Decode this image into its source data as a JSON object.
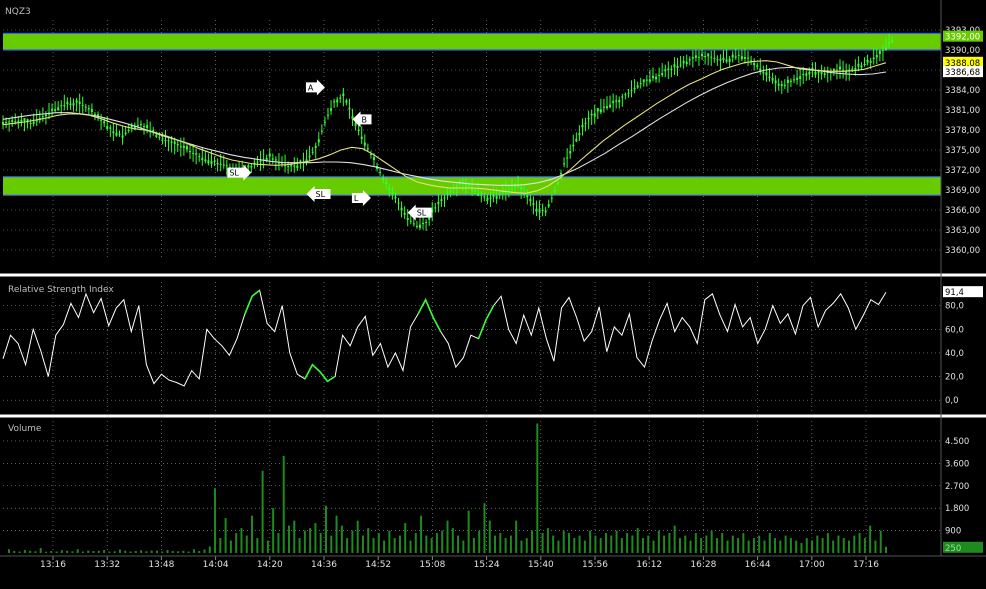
{
  "symbol": "NQZ3",
  "colors": {
    "background": "#000000",
    "up_candle": "#33ff33",
    "band_fill": "#66cc00",
    "band_edge": "#3355ff",
    "ma_fast": "#e6e07a",
    "ma_slow": "#e0e0e0",
    "rsi_line": "#ffffff",
    "volume_bar": "#1f8a1f",
    "separator": "#ffffff",
    "grid": "#9a9a9a",
    "price_tag_last": "#66cc00",
    "price_tag_yellow": "#ffff00",
    "price_tag_white": "#ffffff"
  },
  "x_labels": [
    "13:16",
    "13:32",
    "13:48",
    "14:04",
    "14:20",
    "14:36",
    "14:52",
    "15:08",
    "15:24",
    "15:40",
    "15:56",
    "16:12",
    "16:28",
    "16:44",
    "17:00",
    "17:16"
  ],
  "chart_data": [
    {
      "type": "line",
      "panel": "price",
      "title": "NQZ3",
      "y_ticks": [
        3360,
        3363,
        3366,
        3369,
        3372,
        3375,
        3378,
        3381,
        3384,
        3387,
        3390,
        3393
      ],
      "y_tick_labels": [
        "3360,00",
        "3363,00",
        "3366,00",
        "3369,00",
        "3372,00",
        "3375,00",
        "3378,00",
        "3381,00",
        "3384,00",
        "3387,00",
        "3390,00",
        "3393,00"
      ],
      "ylim": [
        3358.5,
        3394.5
      ],
      "price_tags": [
        {
          "value": 3392.0,
          "label": "3392,00",
          "style": "last"
        },
        {
          "value": 3388.08,
          "label": "3388,08",
          "style": "yellow"
        },
        {
          "value": 3386.68,
          "label": "3386,68",
          "style": "white"
        }
      ],
      "zones": [
        {
          "from": 3390.0,
          "to": 3392.5
        },
        {
          "from": 3368.2,
          "to": 3371.0
        }
      ],
      "close_series": [
        3379.2,
        3379.5,
        3379.0,
        3379.8,
        3380.6,
        3381.4,
        3381.9,
        3382.1,
        3381.5,
        3380.3,
        3379.0,
        3377.8,
        3377.2,
        3378.4,
        3378.9,
        3378.0,
        3376.9,
        3376.3,
        3375.7,
        3375.1,
        3374.3,
        3373.6,
        3373.2,
        3372.8,
        3372.3,
        3371.9,
        3372.6,
        3373.4,
        3374.0,
        3373.2,
        3372.5,
        3372.7,
        3373.6,
        3375.3,
        3379.2,
        3382.3,
        3383.1,
        3380.1,
        3377.0,
        3374.4,
        3371.7,
        3369.0,
        3367.1,
        3364.8,
        3363.6,
        3364.2,
        3366.4,
        3367.8,
        3369.4,
        3370.1,
        3369.3,
        3368.2,
        3367.7,
        3368.4,
        3369.1,
        3369.6,
        3367.9,
        3366.2,
        3365.9,
        3368.8,
        3372.9,
        3375.8,
        3378.4,
        3380.2,
        3381.1,
        3381.8,
        3382.5,
        3383.6,
        3384.7,
        3385.4,
        3386.0,
        3386.8,
        3387.4,
        3388.0,
        3388.7,
        3389.1,
        3389.0,
        3388.4,
        3388.7,
        3389.2,
        3388.8,
        3387.7,
        3386.2,
        3385.0,
        3384.8,
        3385.6,
        3386.3,
        3386.9,
        3386.4,
        3386.7,
        3387.1,
        3386.9,
        3387.5,
        3388.1,
        3388.9,
        3390.4,
        3392.0
      ],
      "ma_fast_series": [
        3378.8,
        3379.0,
        3379.2,
        3379.5,
        3379.8,
        3380.2,
        3380.4,
        3380.4,
        3380.2,
        3379.7,
        3379.1,
        3378.6,
        3378.2,
        3378.0,
        3377.6,
        3377.1,
        3376.5,
        3375.9,
        3375.2,
        3374.6,
        3374.0,
        3373.5,
        3373.2,
        3372.9,
        3372.8,
        3372.7,
        3372.8,
        3373.0,
        3373.3,
        3373.7,
        3374.3,
        3375.0,
        3375.4,
        3375.2,
        3374.3,
        3373.2,
        3372.1,
        3371.0,
        3370.2,
        3369.8,
        3369.5,
        3369.3,
        3369.3,
        3369.3,
        3369.2,
        3369.0,
        3368.8,
        3368.6,
        3368.5,
        3368.9,
        3369.6,
        3370.7,
        3372.0,
        3373.5,
        3374.9,
        3376.3,
        3377.5,
        3378.7,
        3379.8,
        3380.9,
        3382.0,
        3383.0,
        3384.0,
        3384.9,
        3385.6,
        3386.4,
        3387.1,
        3387.6,
        3388.1,
        3388.3,
        3388.4,
        3388.2,
        3387.7,
        3387.2,
        3387.0,
        3386.9,
        3386.8,
        3386.8,
        3386.9,
        3387.1,
        3387.6,
        3388.1
      ],
      "ma_slow_series": [
        3379.6,
        3379.9,
        3380.2,
        3380.4,
        3380.6,
        3380.6,
        3380.4,
        3380.1,
        3379.6,
        3379.1,
        3378.5,
        3377.8,
        3377.1,
        3376.5,
        3375.9,
        3375.3,
        3374.8,
        3374.3,
        3373.9,
        3373.6,
        3373.3,
        3373.1,
        3373.1,
        3373.1,
        3373.2,
        3373.2,
        3373.1,
        3372.8,
        3372.4,
        3371.9,
        3371.4,
        3371.0,
        3370.6,
        3370.3,
        3370.1,
        3369.9,
        3369.8,
        3369.7,
        3369.7,
        3369.8,
        3370.1,
        3370.6,
        3371.4,
        3372.3,
        3373.4,
        3374.5,
        3375.8,
        3377.0,
        3378.3,
        3379.6,
        3380.8,
        3382.0,
        3383.1,
        3384.1,
        3385.0,
        3385.8,
        3386.5,
        3387.0,
        3387.3,
        3387.4,
        3387.2,
        3386.9,
        3386.6,
        3386.4,
        3386.3,
        3386.4,
        3386.7
      ],
      "annotations": [
        {
          "label": "A",
          "at_price": 3384.4,
          "at_time_index": 35,
          "side": "left"
        },
        {
          "label": "B",
          "at_price": 3379.6,
          "at_time_index": 38,
          "side": "right"
        },
        {
          "label": "SL",
          "at_price": 3371.6,
          "at_time_index": 27,
          "side": "left"
        },
        {
          "label": "SL",
          "at_price": 3368.4,
          "at_time_index": 33,
          "side": "right"
        },
        {
          "label": "L",
          "at_price": 3367.8,
          "at_time_index": 40,
          "side": "left"
        },
        {
          "label": "SL",
          "at_price": 3365.6,
          "at_time_index": 44,
          "side": "right"
        }
      ]
    },
    {
      "type": "line",
      "panel": "rsi",
      "title": "Relative Strength Index",
      "y_ticks": [
        0,
        20,
        40,
        60,
        80
      ],
      "y_tick_labels": [
        "0,0",
        "20,0",
        "40,0",
        "60,0",
        "80,0"
      ],
      "ylim": [
        -10,
        100
      ],
      "last_value_label": "91,4",
      "values": [
        35,
        55,
        48,
        30,
        60,
        42,
        20,
        55,
        64,
        82,
        70,
        90,
        74,
        86,
        63,
        78,
        85,
        58,
        80,
        30,
        14,
        22,
        17,
        15,
        12,
        25,
        18,
        60,
        52,
        46,
        38,
        52,
        72,
        88,
        93,
        65,
        58,
        80,
        40,
        22,
        18,
        30,
        24,
        16,
        20,
        55,
        46,
        62,
        71,
        38,
        48,
        28,
        40,
        25,
        62,
        73,
        85,
        70,
        58,
        48,
        28,
        36,
        55,
        52,
        68,
        80,
        88,
        60,
        48,
        72,
        55,
        78,
        52,
        33,
        78,
        87,
        70,
        50,
        58,
        79,
        41,
        62,
        55,
        73,
        36,
        28,
        50,
        68,
        82,
        58,
        70,
        62,
        48,
        85,
        90,
        72,
        58,
        81,
        62,
        70,
        48,
        60,
        80,
        65,
        73,
        56,
        80,
        87,
        62,
        76,
        82,
        90,
        78,
        60,
        72,
        85,
        81,
        91.4
      ],
      "highlights": [
        {
          "from_index": 32,
          "to_index": 34
        },
        {
          "from_index": 40,
          "to_index": 44
        },
        {
          "from_index": 55,
          "to_index": 58
        },
        {
          "from_index": 63,
          "to_index": 65
        }
      ]
    },
    {
      "type": "bar",
      "panel": "volume",
      "title": "Volume",
      "y_ticks": [
        900,
        1800,
        2700,
        3600,
        4500
      ],
      "y_tick_labels": [
        "900",
        "1.800",
        "2.700",
        "3.600",
        "4.500"
      ],
      "ylim": [
        0,
        5300
      ],
      "last_value_label": "250",
      "values": [
        150,
        80,
        60,
        120,
        90,
        70,
        200,
        50,
        80,
        60,
        110,
        90,
        70,
        150,
        60,
        100,
        80,
        90,
        120,
        60,
        70,
        140,
        90,
        60,
        80,
        110,
        70,
        100,
        90,
        60,
        120,
        80,
        70,
        90,
        60,
        150,
        80,
        140,
        260,
        2600,
        600,
        1400,
        500,
        800,
        1000,
        700,
        1500,
        600,
        3300,
        500,
        1800,
        800,
        3900,
        1100,
        1300,
        600,
        900,
        1000,
        1200,
        800,
        1900,
        700,
        1500,
        1100,
        600,
        900,
        1300,
        700,
        1000,
        600,
        800,
        500,
        900,
        600,
        700,
        1200,
        500,
        800,
        1500,
        700,
        600,
        800,
        900,
        1300,
        1000,
        700,
        500,
        1700,
        600,
        900,
        2000,
        1300,
        700,
        800,
        600,
        700,
        1300,
        500,
        600,
        900,
        5200,
        800,
        1000,
        700,
        500,
        900,
        800,
        600,
        700,
        500,
        900,
        700,
        600,
        800,
        700,
        900,
        600,
        800,
        700,
        1000,
        600,
        700,
        500,
        900,
        700,
        800,
        1100,
        600,
        700,
        500,
        800,
        600,
        700,
        900,
        600,
        800,
        500,
        700,
        600,
        800,
        500,
        600,
        700,
        500,
        800,
        600,
        500,
        700,
        600,
        500,
        400,
        600,
        500,
        700,
        600,
        800,
        500,
        700,
        600,
        500,
        700,
        800,
        600,
        1100,
        500,
        900,
        250
      ]
    }
  ]
}
